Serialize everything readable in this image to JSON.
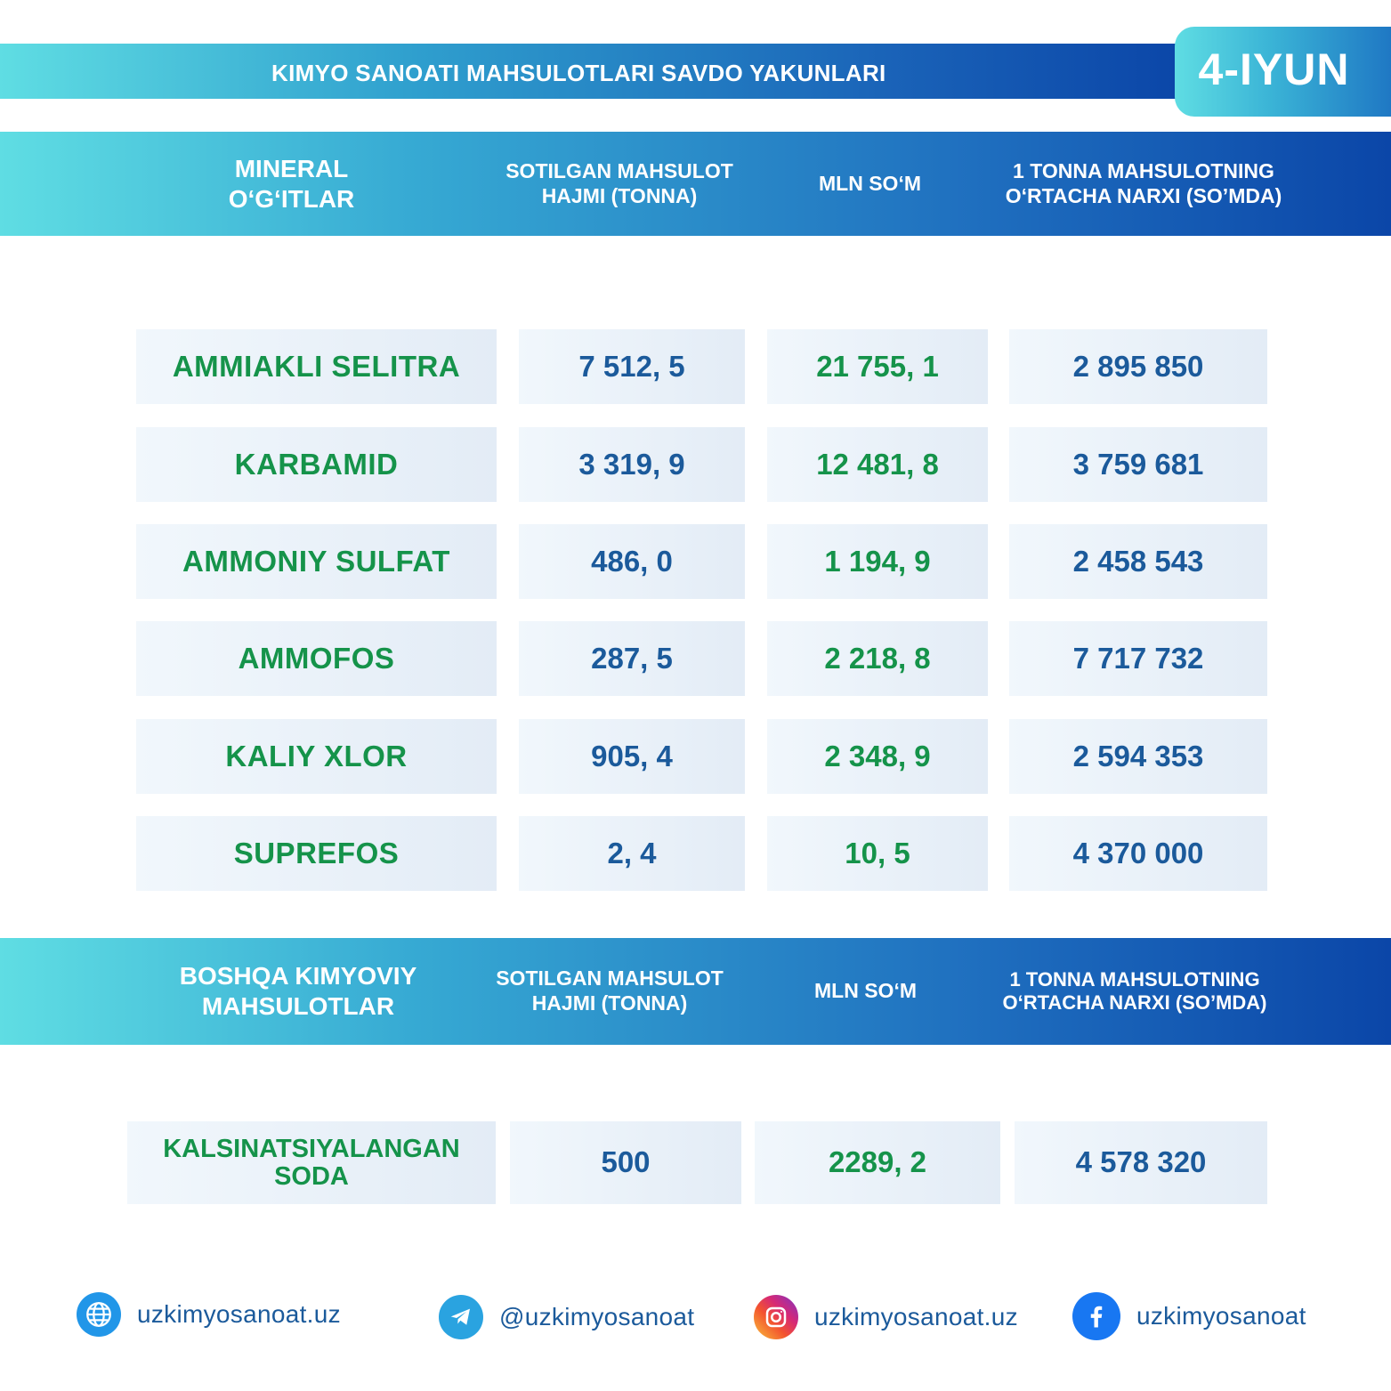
{
  "header": {
    "title": "KIMYO SANOATI MAHSULOTLARI SAVDO YAKUNLARI",
    "date": "4-IYUN"
  },
  "mineral_table": {
    "headers": {
      "category": "MINERAL O‘G‘ITLAR",
      "volume": "SOTILGAN MAHSULOT HAJMI (TONNA)",
      "amount": "MLN SO‘M",
      "price": "1 TONNA MAHSULOTNING O‘RTACHA NARXI (SO’MDA)"
    },
    "rows": [
      {
        "name": "AMMIAKLI SELITRA",
        "volume": "7 512, 5",
        "amount": "21 755, 1",
        "price": "2 895 850"
      },
      {
        "name": "KARBAMID",
        "volume": "3 319, 9",
        "amount": "12 481, 8",
        "price": "3 759 681"
      },
      {
        "name": "AMMONIY SULFAT",
        "volume": "486, 0",
        "amount": "1 194, 9",
        "price": "2 458 543"
      },
      {
        "name": "AMMOFOS",
        "volume": "287, 5",
        "amount": "2 218, 8",
        "price": "7 717 732"
      },
      {
        "name": "KALIY XLOR",
        "volume": "905, 4",
        "amount": "2 348, 9",
        "price": "2 594 353"
      },
      {
        "name": "SUPREFOS",
        "volume": "2, 4",
        "amount": "10, 5",
        "price": "4 370 000"
      }
    ]
  },
  "other_table": {
    "headers": {
      "category": "BOSHQA KIMYOVIY MAHSULOTLAR",
      "volume": "SOTILGAN MAHSULOT HAJMI (TONNA)",
      "amount": "MLN SO‘M",
      "price": "1 TONNA MAHSULOTNING O‘RTACHA NARXI (SO’MDA)"
    },
    "rows": [
      {
        "name": "KALSINATSIYALANGAN SODA",
        "volume": "500",
        "amount": "2289, 2",
        "price": "4 578 320"
      }
    ]
  },
  "footer": {
    "website": {
      "icon": "globe-icon",
      "label": "uzkimyosanoat.uz"
    },
    "telegram": {
      "icon": "telegram-icon",
      "label": "@uzkimyosanoat"
    },
    "instagram": {
      "icon": "instagram-icon",
      "label": "uzkimyosanoat.uz"
    },
    "facebook": {
      "icon": "facebook-icon",
      "label": "uzkimyosanoat"
    }
  },
  "colors": {
    "accent_cyan": "#5fdde3",
    "accent_blue": "#0b46a8",
    "name_green": "#15934a",
    "value_blue": "#1b5a9b"
  }
}
